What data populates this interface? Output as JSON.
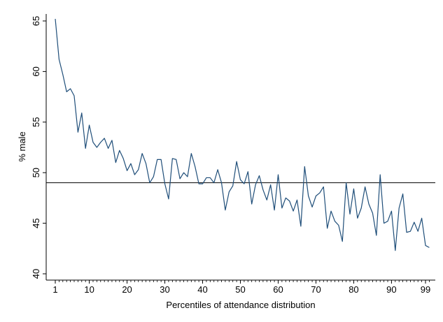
{
  "chart_data": {
    "type": "line",
    "title": "",
    "xlabel": "Percentiles of attendance distribution",
    "ylabel": "% male",
    "xlim": [
      0,
      101
    ],
    "ylim": [
      39,
      66
    ],
    "x_ticks": [
      1,
      10,
      20,
      30,
      40,
      50,
      60,
      70,
      80,
      90,
      99
    ],
    "y_ticks": [
      40,
      45,
      50,
      55,
      60,
      65
    ],
    "grid": false,
    "legend": "none",
    "line_color": "#1f4e79",
    "reference_line": {
      "y": 49.0,
      "color": "#000000"
    },
    "series": [
      {
        "x": [
          1,
          2,
          3,
          4,
          5,
          6,
          7,
          8,
          9,
          10,
          11,
          12,
          13,
          14,
          15,
          16,
          17,
          18,
          19,
          20,
          21,
          22,
          23,
          24,
          25,
          26,
          27,
          28,
          29,
          30,
          31,
          32,
          33,
          34,
          35,
          36,
          37,
          38,
          39,
          40,
          41,
          42,
          43,
          44,
          45,
          46,
          47,
          48,
          49,
          50,
          51,
          52,
          53,
          54,
          55,
          56,
          57,
          58,
          59,
          60,
          61,
          62,
          63,
          64,
          65,
          66,
          67,
          68,
          69,
          70,
          71,
          72,
          73,
          74,
          75,
          76,
          77,
          78,
          79,
          80,
          81,
          82,
          83,
          84,
          85,
          86,
          87,
          88,
          89,
          90,
          91,
          92,
          93,
          94,
          95,
          96,
          97,
          98,
          99,
          100
        ],
        "values": [
          65.2,
          61.2,
          59.7,
          58.0,
          58.3,
          57.6,
          54.0,
          55.9,
          52.4,
          54.7,
          53.0,
          52.5,
          53.0,
          53.4,
          52.4,
          53.2,
          51.0,
          52.2,
          51.4,
          50.2,
          50.9,
          49.8,
          50.3,
          51.9,
          50.9,
          49.0,
          49.6,
          51.3,
          51.3,
          48.9,
          47.4,
          51.4,
          51.3,
          49.4,
          50.0,
          49.6,
          51.9,
          50.6,
          48.9,
          48.9,
          49.5,
          49.5,
          49.0,
          50.3,
          49.0,
          46.3,
          48.1,
          48.7,
          51.1,
          49.3,
          48.9,
          50.1,
          46.9,
          48.8,
          49.7,
          48.3,
          47.3,
          48.8,
          46.3,
          49.8,
          46.5,
          47.5,
          47.2,
          46.2,
          47.3,
          44.7,
          50.6,
          47.7,
          46.6,
          47.7,
          48.0,
          48.6,
          44.5,
          46.2,
          45.2,
          44.8,
          43.2,
          49.0,
          45.9,
          48.4,
          45.5,
          46.5,
          48.6,
          46.9,
          46.0,
          43.8,
          49.8,
          45.0,
          45.2,
          46.2,
          42.3,
          46.5,
          47.9,
          44.1,
          44.2,
          45.1,
          44.2,
          45.5,
          42.8,
          42.6
        ]
      }
    ]
  }
}
